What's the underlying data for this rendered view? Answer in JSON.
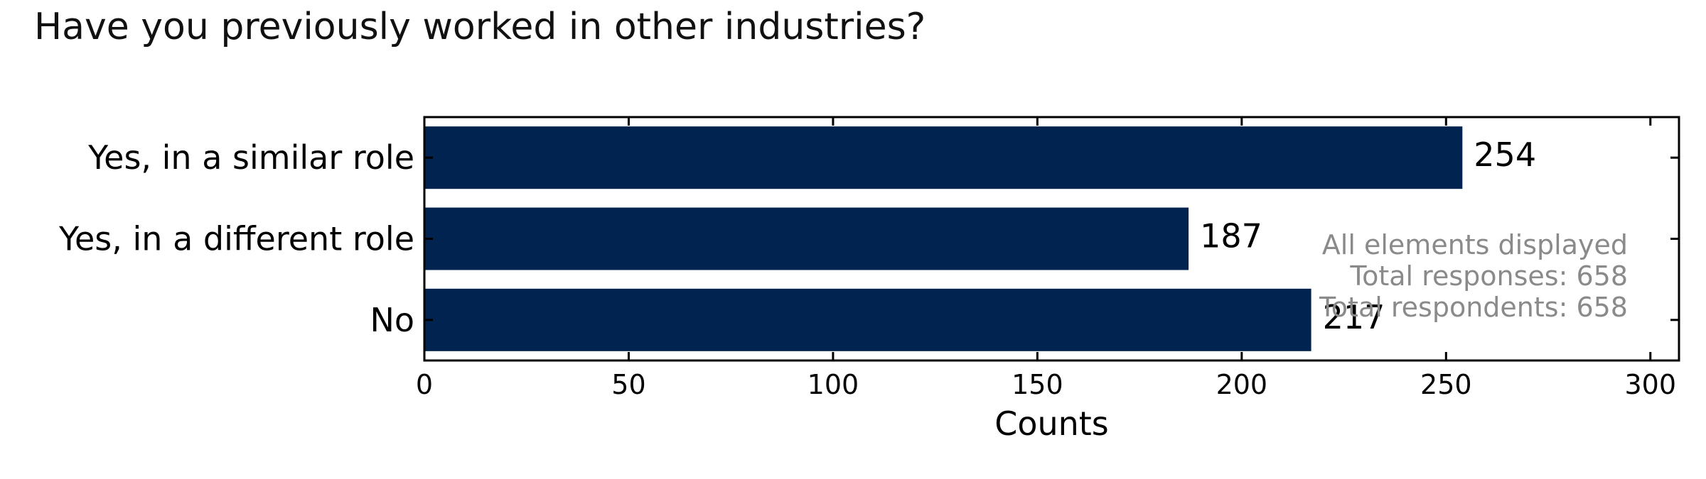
{
  "chart_data": {
    "type": "bar",
    "orientation": "horizontal",
    "title": "Have you previously worked in other industries?",
    "categories": [
      "Yes, in a similar role",
      "Yes, in a different role",
      "No"
    ],
    "values": [
      254,
      187,
      217
    ],
    "xlabel": "Counts",
    "ylabel": "",
    "xlim": [
      0,
      307
    ],
    "xticks": [
      0,
      50,
      100,
      150,
      200,
      250,
      300
    ],
    "grid": false,
    "bar_color": "#002350",
    "annotations": [
      "All elements displayed",
      "Total responses: 658",
      "Total respondents: 658"
    ]
  }
}
